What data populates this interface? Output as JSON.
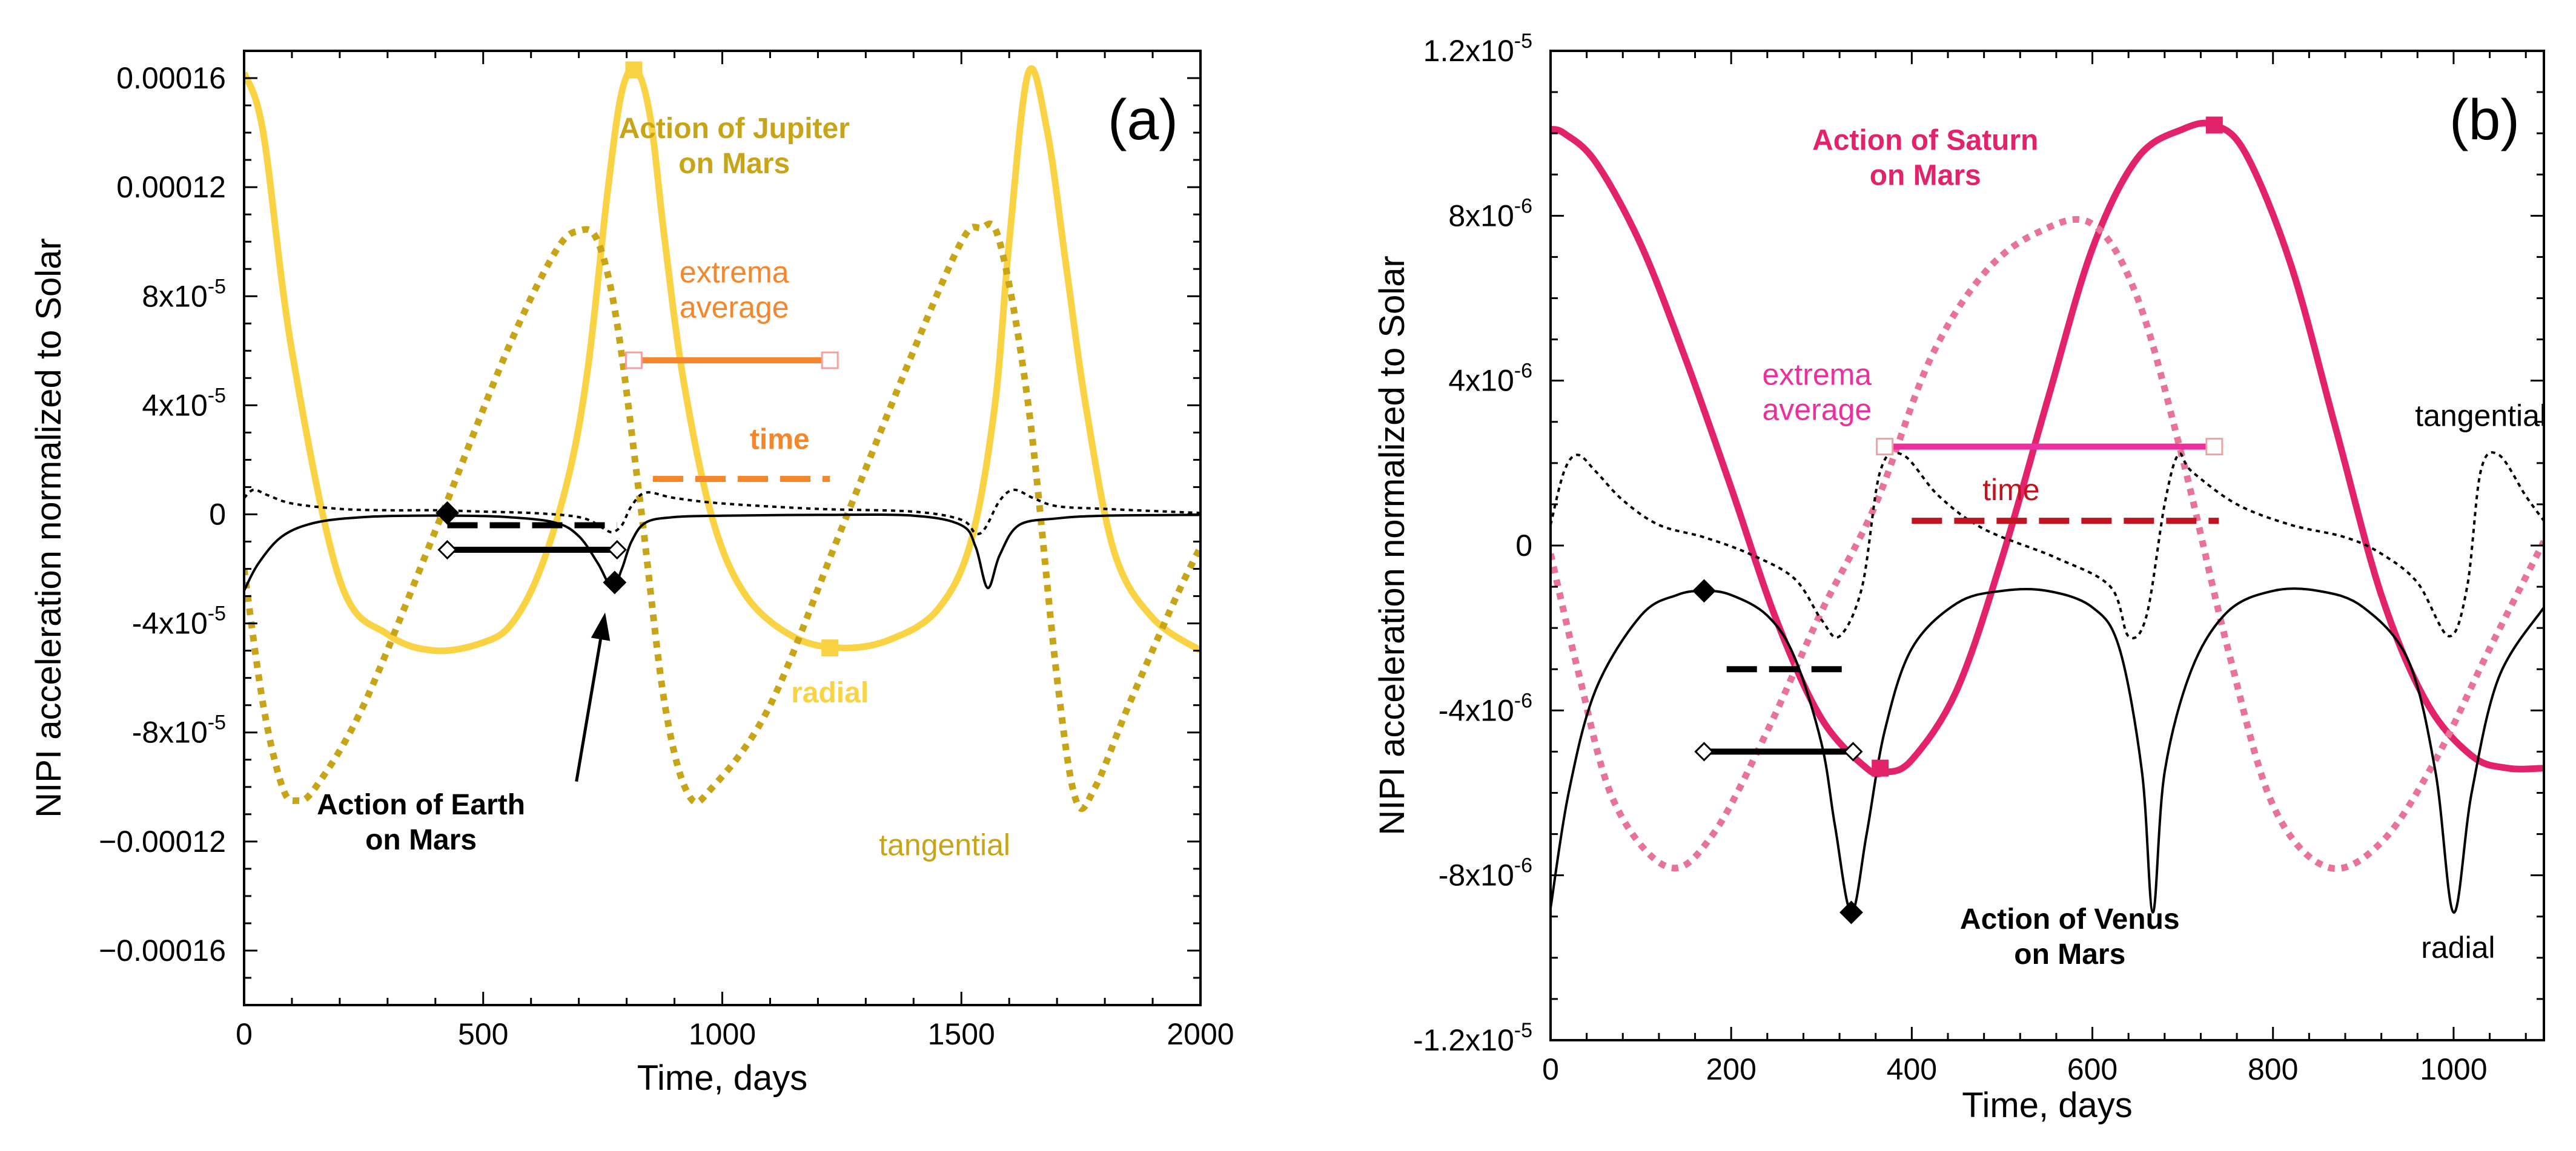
{
  "chart_data": [
    {
      "id": "a",
      "type": "line",
      "panel_label": "(a)",
      "xlabel": "Time, days",
      "ylabel": "NIPI acceleration normalized to Solar",
      "xlim": [
        0,
        2000
      ],
      "ylim": [
        -0.00018,
        0.00017
      ],
      "x_ticks": [
        0,
        500,
        1000,
        1500,
        2000
      ],
      "x_tick_labels": [
        "0",
        "500",
        "1000",
        "1500",
        "2000"
      ],
      "y_ticks": [
        0.00016,
        0.00012,
        8e-05,
        4e-05,
        0,
        -4e-05,
        -8e-05,
        -0.00012,
        -0.00016
      ],
      "y_tick_labels": [
        {
          "value": 0.00016,
          "base": "0.00016",
          "exp": ""
        },
        {
          "value": 0.00012,
          "base": "0.00012",
          "exp": ""
        },
        {
          "value": 8e-05,
          "base": "8x10",
          "exp": "-5"
        },
        {
          "value": 4e-05,
          "base": "4x10",
          "exp": "-5"
        },
        {
          "value": 0,
          "base": "0",
          "exp": ""
        },
        {
          "value": -4e-05,
          "base": "-4x10",
          "exp": "-5"
        },
        {
          "value": -8e-05,
          "base": "-8x10",
          "exp": "-5"
        },
        {
          "value": -0.00012,
          "base": "−0.00012",
          "exp": ""
        },
        {
          "value": -0.00016,
          "base": "−0.00016",
          "exp": ""
        }
      ],
      "grid": false,
      "series": [
        {
          "name": "Jupiter radial",
          "color": "#f9d343",
          "style": "solid",
          "width": 11,
          "x": [
            0,
            40,
            100,
            200,
            300,
            400,
            500,
            560,
            620,
            680,
            720,
            760,
            790,
            820,
            850,
            880,
            920,
            980,
            1050,
            1150,
            1250,
            1350,
            1450,
            1520,
            1570,
            1600,
            1640,
            1680,
            1720,
            1760,
            1820,
            1900,
            2000
          ],
          "y": [
            0.000162,
            0.00014,
            6e-05,
            -2.4e-05,
            -4.4e-05,
            -5e-05,
            -4.7e-05,
            -4e-05,
            -2e-05,
            1.5e-05,
            5.5e-05,
            0.000118,
            0.000155,
            0.000163,
            0.000145,
            0.0001,
            4.8e-05,
            -2e-06,
            -3e-05,
            -4.5e-05,
            -4.9e-05,
            -4.6e-05,
            -3.5e-05,
            -1e-05,
            4e-05,
            0.0001,
            0.000162,
            0.00014,
            9e-05,
            4e-05,
            -1.4e-05,
            -3.8e-05,
            -5e-05
          ]
        },
        {
          "name": "Jupiter tangential",
          "color": "#c8a418",
          "style": "dotted",
          "width": 11,
          "x": [
            0,
            40,
            80,
            110,
            150,
            250,
            400,
            550,
            650,
            700,
            740,
            780,
            830,
            880,
            930,
            980,
            1100,
            1250,
            1400,
            1500,
            1540,
            1580,
            1640,
            1700,
            1740,
            1780,
            1850,
            1950,
            2000
          ],
          "y": [
            -2e-05,
            -7e-05,
            -0.0001,
            -0.000105,
            -0.0001,
            -7e-05,
            -6e-06,
            6e-05,
            9.6e-05,
            0.000104,
            0.0001,
            7e-05,
            2e-06,
            -7e-05,
            -0.000103,
            -0.0001,
            -7e-05,
            -5e-06,
            6e-05,
            0.0001,
            0.000105,
            0.0001,
            4e-05,
            -6e-05,
            -0.000105,
            -0.0001,
            -7e-05,
            -3e-05,
            -1.2e-05
          ]
        },
        {
          "name": "Earth radial",
          "color": "#000000",
          "style": "solid",
          "width": 4,
          "x": [
            0,
            30,
            80,
            150,
            250,
            350,
            450,
            550,
            650,
            700,
            740,
            770,
            790,
            810,
            840,
            900,
            1000,
            1200,
            1400,
            1500,
            1530,
            1555,
            1580,
            1620,
            1700,
            1800,
            2000
          ],
          "y": [
            -2.8e-05,
            -1.8e-05,
            -8e-06,
            -3e-06,
            -1e-06,
            -5e-07,
            -5e-07,
            -1e-06,
            -3e-06,
            -8e-06,
            -1.8e-05,
            -2.7e-05,
            -2e-05,
            -1e-05,
            -3e-06,
            -1e-06,
            -5e-07,
            -2e-07,
            -5e-07,
            -4e-06,
            -1.2e-05,
            -2.7e-05,
            -1.5e-05,
            -4e-06,
            -1.5e-06,
            -5e-07,
            -2e-07
          ]
        },
        {
          "name": "Earth tangential",
          "color": "#000000",
          "style": "dotted",
          "width": 4,
          "x": [
            0,
            20,
            50,
            100,
            200,
            300,
            400,
            500,
            600,
            680,
            720,
            750,
            770,
            790,
            810,
            840,
            900,
            1000,
            1200,
            1400,
            1500,
            1530,
            1550,
            1580,
            1610,
            1650,
            1700,
            1800,
            2000
          ],
          "y": [
            6e-06,
            9e-06,
            7e-06,
            4e-06,
            2e-06,
            1.5e-06,
            1.5e-06,
            1e-06,
            5e-07,
            -5e-07,
            -2e-06,
            -5e-06,
            -6.5e-06,
            -4e-06,
            3e-06,
            8e-06,
            6e-06,
            4e-06,
            2e-06,
            1e-06,
            -2e-06,
            -7e-06,
            -5e-06,
            5e-06,
            9e-06,
            6e-06,
            3e-06,
            2e-06,
            5e-07
          ]
        }
      ],
      "averages": [
        {
          "name": "Jupiter extrema average",
          "x": [
            815,
            1225
          ],
          "y": 5.65e-05,
          "color": "#f4862c",
          "style": "solid",
          "marker": "open-square"
        },
        {
          "name": "Jupiter time average",
          "x": [
            855,
            1225
          ],
          "y": 1.3e-05,
          "color": "#f4862c",
          "style": "dashed",
          "marker": "none"
        },
        {
          "name": "Earth extrema average",
          "x": [
            425,
            780
          ],
          "y": -1.3e-05,
          "color": "#000000",
          "style": "solid",
          "marker": "open-diamond"
        },
        {
          "name": "Earth time average",
          "x": [
            425,
            780
          ],
          "y": -4e-06,
          "color": "#000000",
          "style": "dashed",
          "marker": "none"
        }
      ],
      "extrema_points": [
        {
          "name": "Jupiter radial max",
          "x": 815,
          "y": 0.000163,
          "color": "#f9d343",
          "marker": "square"
        },
        {
          "name": "Jupiter radial min",
          "x": 1225,
          "y": -4.9e-05,
          "color": "#f9d343",
          "marker": "square"
        },
        {
          "name": "Earth radial max",
          "x": 425,
          "y": 5e-07,
          "color": "#000000",
          "marker": "diamond"
        },
        {
          "name": "Earth radial min",
          "x": 775,
          "y": -2.5e-05,
          "color": "#000000",
          "marker": "diamond"
        }
      ],
      "annotations": [
        {
          "text": [
            "Action of Jupiter",
            "on Mars"
          ],
          "color": "#c8a418",
          "bold": true,
          "x": 1025,
          "y": 0.000138
        },
        {
          "text": [
            "extrema",
            "average"
          ],
          "color": "#f4862c",
          "bold": false,
          "x": 1025,
          "y": 8.5e-05
        },
        {
          "text": [
            "time"
          ],
          "color": "#f4862c",
          "bold": true,
          "x": 1120,
          "y": 2.4e-05
        },
        {
          "text": [
            "radial"
          ],
          "color": "#f9d343",
          "bold": true,
          "x": 1225,
          "y": -6.9e-05
        },
        {
          "text": [
            "Action of Earth",
            "on Mars"
          ],
          "color": "#000000",
          "bold": true,
          "x": 370,
          "y": -0.00011
        },
        {
          "text": [
            "tangential"
          ],
          "color": "#c8a418",
          "bold": false,
          "x": 1465,
          "y": -0.000125
        }
      ],
      "arrow": {
        "from_x": 695,
        "from_y": -9.8e-05,
        "to_x": 755,
        "to_y": -3.6e-05
      }
    },
    {
      "id": "b",
      "type": "line",
      "panel_label": "(b)",
      "xlabel": "Time, days",
      "ylabel": "NIPI acceleration normalized to Solar",
      "xlim": [
        0,
        1100
      ],
      "ylim": [
        -1.2e-05,
        1.2e-05
      ],
      "x_ticks": [
        0,
        200,
        400,
        600,
        800,
        1000
      ],
      "x_tick_labels": [
        "0",
        "200",
        "400",
        "600",
        "800",
        "1000"
      ],
      "y_ticks": [
        1.2e-05,
        8e-06,
        4e-06,
        0,
        -4e-06,
        -8e-06,
        -1.2e-05
      ],
      "y_tick_labels": [
        {
          "value": 1.2e-05,
          "base": "1.2x10",
          "exp": "-5"
        },
        {
          "value": 8e-06,
          "base": "8x10",
          "exp": "-6"
        },
        {
          "value": 4e-06,
          "base": "4x10",
          "exp": "-6"
        },
        {
          "value": 0,
          "base": "0",
          "exp": ""
        },
        {
          "value": -4e-06,
          "base": "-4x10",
          "exp": "-6"
        },
        {
          "value": -8e-06,
          "base": "-8x10",
          "exp": "-6"
        },
        {
          "value": -1.2e-05,
          "base": "-1.2x10",
          "exp": "-5"
        }
      ],
      "grid": false,
      "series": [
        {
          "name": "Saturn radial",
          "color": "#e3226c",
          "style": "solid",
          "width": 11,
          "x": [
            0,
            15,
            50,
            100,
            150,
            200,
            250,
            300,
            350,
            370,
            400,
            450,
            500,
            550,
            600,
            650,
            700,
            735,
            770,
            820,
            870,
            920,
            970,
            1020,
            1060,
            1100
          ],
          "y": [
            1.01e-05,
            1e-05,
            9.3e-06,
            7.3e-06,
            4.5e-06,
            1.4e-06,
            -1.8e-06,
            -4.2e-06,
            -5.4e-06,
            -5.5e-06,
            -5.2e-06,
            -3.5e-06,
            -3e-07,
            3.5e-06,
            7.2e-06,
            9.4e-06,
            1.01e-05,
            1.02e-05,
            9.5e-06,
            6.8e-06,
            2.8e-06,
            -1.2e-06,
            -3.8e-06,
            -5.1e-06,
            -5.4e-06,
            -5.4e-06
          ]
        },
        {
          "name": "Saturn tangential",
          "color": "#e8739a",
          "style": "dotted",
          "width": 11,
          "x": [
            0,
            30,
            70,
            130,
            180,
            240,
            300,
            360,
            420,
            480,
            540,
            600,
            650,
            700,
            750,
            800,
            860,
            920,
            980,
            1040,
            1100
          ],
          "y": [
            -2e-07,
            -3e-06,
            -6.2e-06,
            -7.8e-06,
            -7e-06,
            -4.5e-06,
            -1.6e-06,
            1e-06,
            4.5e-06,
            6.6e-06,
            7.6e-06,
            7.8e-06,
            6e-06,
            2.1e-06,
            -2.5e-06,
            -6.3e-06,
            -7.8e-06,
            -7.2e-06,
            -5.2e-06,
            -2.5e-06,
            1e-07
          ]
        },
        {
          "name": "Venus radial",
          "color": "#000000",
          "style": "solid",
          "width": 4,
          "x": [
            0,
            20,
            50,
            100,
            140,
            170,
            200,
            240,
            270,
            300,
            315,
            333,
            350,
            370,
            400,
            450,
            500,
            550,
            600,
            630,
            655,
            667,
            680,
            710,
            750,
            800,
            850,
            900,
            950,
            980,
            1000,
            1020,
            1050,
            1100
          ],
          "y": [
            -8.8e-06,
            -6e-06,
            -3.5e-06,
            -1.7e-06,
            -1.2e-06,
            -1.1e-06,
            -1.2e-06,
            -1.7e-06,
            -2.7e-06,
            -4.8e-06,
            -6.8e-06,
            -8.9e-06,
            -7e-06,
            -4.5e-06,
            -2.5e-06,
            -1.4e-06,
            -1.1e-06,
            -1.1e-06,
            -1.5e-06,
            -2.5e-06,
            -5.5e-06,
            -8.9e-06,
            -5.5e-06,
            -3e-06,
            -1.6e-06,
            -1.1e-06,
            -1.1e-06,
            -1.5e-06,
            -2.8e-06,
            -5.5e-06,
            -8.9e-06,
            -6e-06,
            -3.2e-06,
            -1.5e-06
          ]
        },
        {
          "name": "Venus tangential",
          "color": "#000000",
          "style": "dotted",
          "width": 4,
          "x": [
            0,
            15,
            30,
            50,
            80,
            120,
            170,
            220,
            270,
            300,
            320,
            345,
            365,
            390,
            430,
            480,
            560,
            620,
            640,
            660,
            680,
            695,
            710,
            760,
            820,
            880,
            920,
            960,
            995,
            1015,
            1030,
            1050,
            1080,
            1100
          ],
          "y": [
            5e-07,
            1.8e-06,
            2.2e-06,
            1.8e-06,
            1.1e-06,
            5e-07,
            2e-07,
            -2e-07,
            -8e-07,
            -1.8e-06,
            -2.2e-06,
            -1e-06,
            1.8e-06,
            2.2e-06,
            1.2e-06,
            4e-07,
            -3e-07,
            -1e-06,
            -2.2e-06,
            -1.7e-06,
            1e-06,
            2.2e-06,
            1.8e-06,
            1e-06,
            5e-07,
            2e-07,
            -2e-07,
            -9e-07,
            -2.2e-06,
            -1e-06,
            1.8e-06,
            2.2e-06,
            1.2e-06,
            6e-07
          ]
        }
      ],
      "averages": [
        {
          "name": "Saturn extrema average",
          "x": [
            370,
            735
          ],
          "y": 2.4e-06,
          "color": "#ec2f9c",
          "style": "solid",
          "marker": "open-square"
        },
        {
          "name": "Saturn time average",
          "x": [
            400,
            740
          ],
          "y": 6e-07,
          "color": "#c1121f",
          "style": "dashed",
          "marker": "none"
        },
        {
          "name": "Venus extrema average",
          "x": [
            170,
            335
          ],
          "y": -5e-06,
          "color": "#000000",
          "style": "solid",
          "marker": "open-diamond"
        },
        {
          "name": "Venus time average",
          "x": [
            195,
            330
          ],
          "y": -3e-06,
          "color": "#000000",
          "style": "dashed",
          "marker": "none"
        }
      ],
      "extrema_points": [
        {
          "name": "Saturn radial max",
          "x": 735,
          "y": 1.02e-05,
          "color": "#e3226c",
          "marker": "square"
        },
        {
          "name": "Saturn radial min",
          "x": 365,
          "y": -5.4e-06,
          "color": "#e3226c",
          "marker": "square"
        },
        {
          "name": "Venus radial max",
          "x": 170,
          "y": -1.1e-06,
          "color": "#000000",
          "marker": "diamond"
        },
        {
          "name": "Venus radial min",
          "x": 333,
          "y": -8.9e-06,
          "color": "#000000",
          "marker": "diamond"
        }
      ],
      "annotations": [
        {
          "text": [
            "Action of Saturn",
            "on Mars"
          ],
          "color": "#e3226c",
          "bold": true,
          "x": 415,
          "y": 9.6e-06
        },
        {
          "text": [
            "extrema",
            "average"
          ],
          "color": "#ec2f9c",
          "bold": false,
          "x": 295,
          "y": 3.9e-06
        },
        {
          "text": [
            "time"
          ],
          "color": "#c1121f",
          "bold": false,
          "x": 510,
          "y": 1.1e-06
        },
        {
          "text": [
            "tangential"
          ],
          "color": "#000000",
          "bold": false,
          "x": 1030,
          "y": 2.9e-06
        },
        {
          "text": [
            "Action of Venus",
            "on Mars"
          ],
          "color": "#000000",
          "bold": true,
          "x": 575,
          "y": -9.3e-06
        },
        {
          "text": [
            "radial"
          ],
          "color": "#000000",
          "bold": false,
          "x": 1005,
          "y": -1e-05
        }
      ],
      "arrow": null
    }
  ]
}
